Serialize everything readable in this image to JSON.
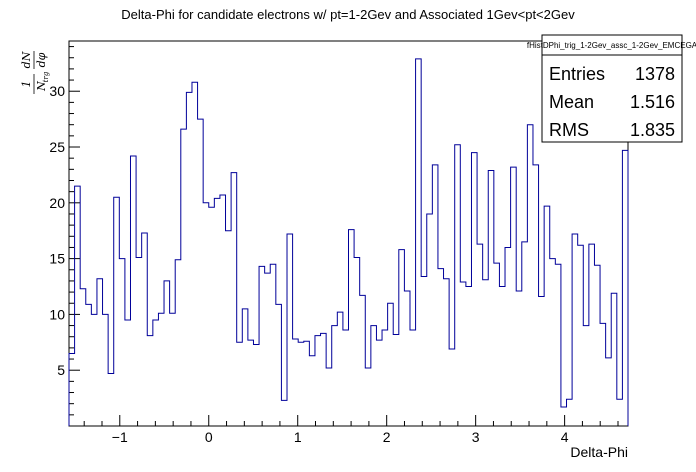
{
  "chart_data": {
    "type": "histogram",
    "title": "Delta-Phi for candidate electrons w/ pt=1-2Gev and Associated 1Gev<pt<2Gev",
    "xlabel": "Delta-Phi",
    "ylabel": {
      "numerator": "1",
      "denominator_main": "N",
      "denominator_sub": "trg",
      "frac_num": "dN",
      "frac_den": "dφ"
    },
    "xlim": [
      -1.5708,
      4.7124
    ],
    "ylim": [
      0,
      34.5
    ],
    "xticks": [
      -1,
      0,
      1,
      2,
      3,
      4
    ],
    "xtick_labels": [
      "−1",
      "0",
      "1",
      "2",
      "3",
      "4"
    ],
    "yticks": [
      5,
      10,
      15,
      20,
      25,
      30
    ],
    "ytick_labels": [
      "5",
      "10",
      "15",
      "20",
      "25",
      "30"
    ],
    "line_color": "#000099",
    "bins": 100,
    "values": [
      6.5,
      21.5,
      12.3,
      10.9,
      10.0,
      13.2,
      10.0,
      4.7,
      20.5,
      15.0,
      9.5,
      24.2,
      15.1,
      17.3,
      8.1,
      9.5,
      10.1,
      13.0,
      10.1,
      14.9,
      26.6,
      29.9,
      30.8,
      27.5,
      20.0,
      19.6,
      20.4,
      20.7,
      17.5,
      22.7,
      7.5,
      10.5,
      7.7,
      7.3,
      14.3,
      13.7,
      14.5,
      10.9,
      2.3,
      17.2,
      7.8,
      7.5,
      7.6,
      6.3,
      8.1,
      8.3,
      5.2,
      9.0,
      10.2,
      8.6,
      17.6,
      15.1,
      11.7,
      5.2,
      9.0,
      7.7,
      8.6,
      11.0,
      8.2,
      15.8,
      12.1,
      8.6,
      32.9,
      13.4,
      19.0,
      23.4,
      14.1,
      13.2,
      6.9,
      25.2,
      12.9,
      12.5,
      24.5,
      16.3,
      13.1,
      22.9,
      14.6,
      12.5,
      16.0,
      23.2,
      12.1,
      16.5,
      27.0,
      23.4,
      11.6,
      19.7,
      15.0,
      14.5,
      1.7,
      2.4,
      17.2,
      16.2,
      9.0,
      16.3,
      14.4,
      9.2,
      6.1,
      11.9,
      2.4,
      24.7
    ],
    "stats": {
      "name": "fHistDPhi_trig_1-2Gev_assc_1-2Gev_EMCEGA",
      "rows": [
        {
          "label": "Entries",
          "value": "1378"
        },
        {
          "label": "Mean",
          "value": "1.516"
        },
        {
          "label": "RMS",
          "value": "1.835"
        }
      ]
    }
  }
}
